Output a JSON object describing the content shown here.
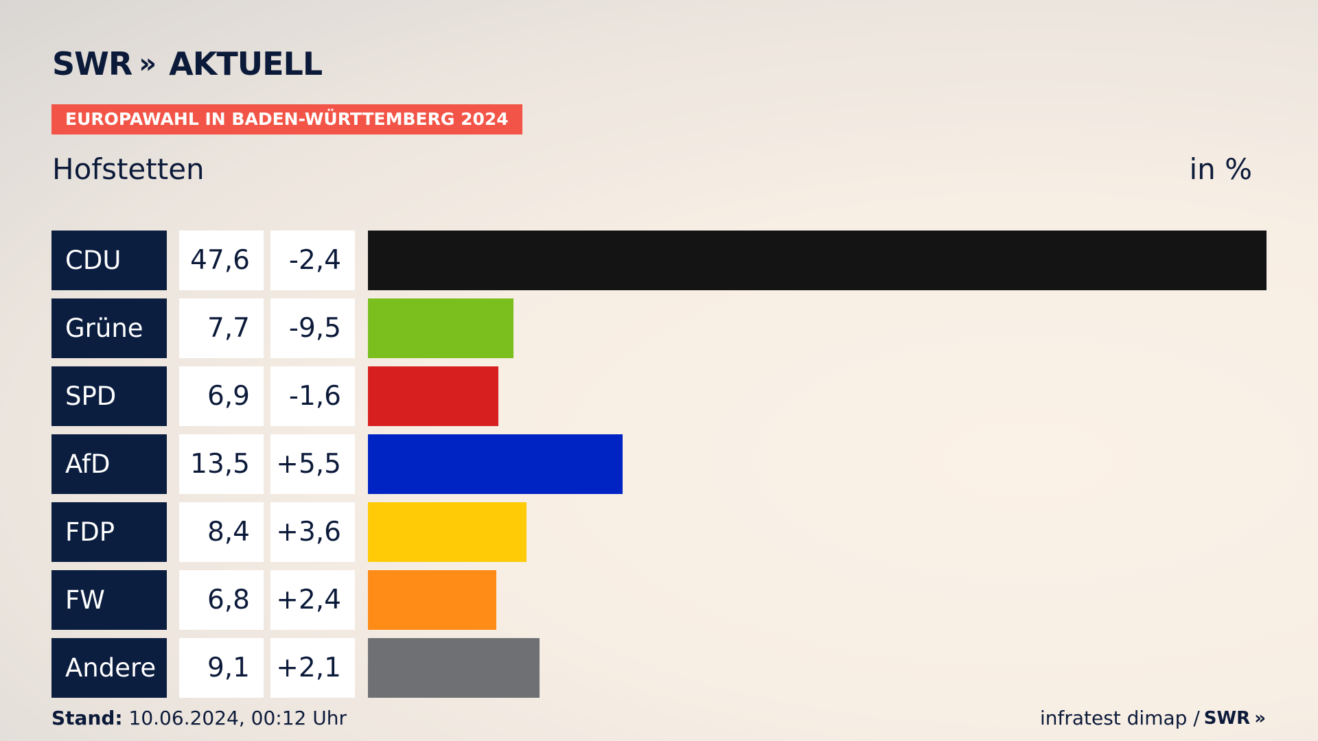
{
  "header": {
    "logo_text": "SWR",
    "logo_chevrons": "»",
    "logo_suffix": "AKTUELL",
    "tag": "EUROPAWAHL IN BADEN-WÜRTTEMBERG 2024",
    "place": "Hofstetten",
    "unit": "in %"
  },
  "chart_data": {
    "type": "bar",
    "orientation": "horizontal",
    "categories": [
      "CDU",
      "Grüne",
      "SPD",
      "AfD",
      "FDP",
      "FW",
      "Andere"
    ],
    "values": [
      47.6,
      7.7,
      6.9,
      13.5,
      8.4,
      6.8,
      9.1
    ],
    "value_labels": [
      "47,6",
      "7,7",
      "6,9",
      "13,5",
      "8,4",
      "6,8",
      "9,1"
    ],
    "change_labels": [
      "-2,4",
      "-9,5",
      "-1,6",
      "+5,5",
      "+3,6",
      "+2,4",
      "+2,1"
    ],
    "changes": [
      -2.4,
      -9.5,
      -1.6,
      5.5,
      3.6,
      2.4,
      2.1
    ],
    "colors": [
      "#141414",
      "#7bbf1e",
      "#d81f1f",
      "#0023c4",
      "#fecb06",
      "#fe8c16",
      "#6f7073"
    ],
    "xlim": [
      0,
      47.6
    ]
  },
  "footer": {
    "stand_label": "Stand:",
    "stand_value": "10.06.2024, 00:12 Uhr",
    "source": "infratest dimap /",
    "source_logo": "SWR"
  }
}
